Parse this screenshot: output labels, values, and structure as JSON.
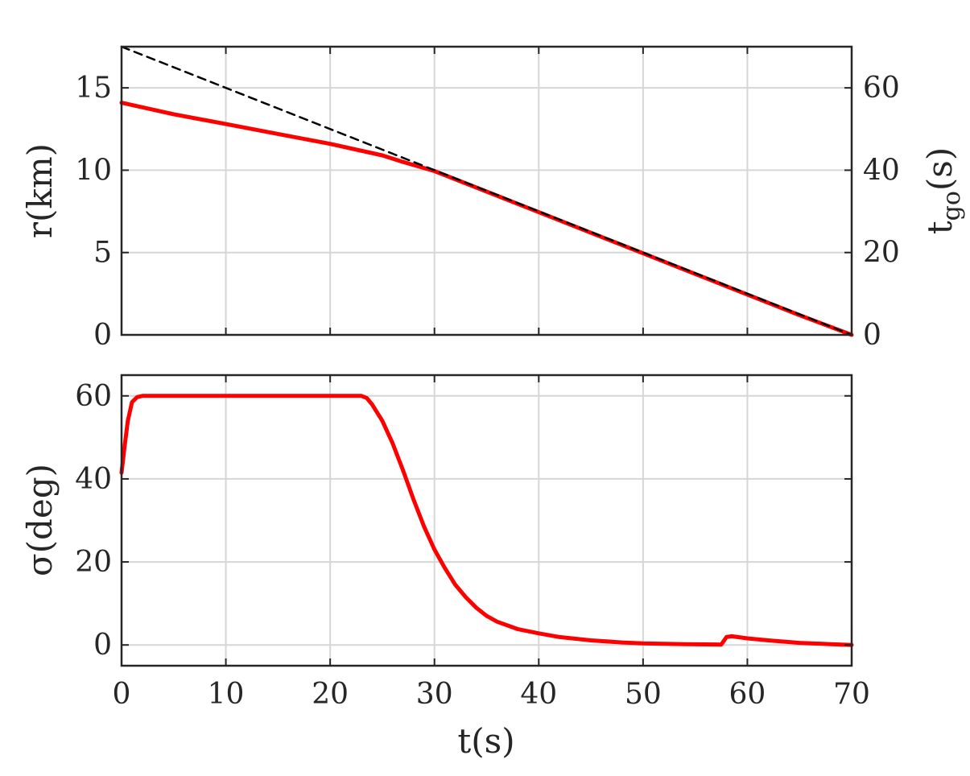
{
  "chart_data": [
    {
      "type": "line",
      "panel": "top",
      "xlim": [
        0,
        70
      ],
      "ylim": [
        0,
        17.5
      ],
      "ylim_right": [
        0,
        70
      ],
      "grid": true,
      "xlabel": "",
      "ylabel": "r(km)",
      "ylabel_right": {
        "base": "t",
        "sub": "go",
        "suffix": "(s)"
      },
      "x_ticks": [
        0,
        10,
        20,
        30,
        40,
        50,
        60,
        70
      ],
      "y_ticks": [
        0,
        5,
        10,
        15
      ],
      "y_ticks_right": [
        0,
        20,
        40,
        60
      ],
      "colors": {
        "r": "#ff0000",
        "tgo": "#000000"
      },
      "series": [
        {
          "axis": "left",
          "style": "solid",
          "color": "#ff0000",
          "x": [
            0,
            5,
            10,
            15,
            20,
            25,
            27,
            30,
            35,
            40,
            45,
            50,
            55,
            60,
            65,
            70
          ],
          "y": [
            14.1,
            13.4,
            12.8,
            12.2,
            11.6,
            10.9,
            10.5,
            9.95,
            8.7,
            7.45,
            6.2,
            4.95,
            3.7,
            2.45,
            1.2,
            0
          ]
        },
        {
          "axis": "right",
          "style": "dashed",
          "color": "#000000",
          "x": [
            0,
            70
          ],
          "y": [
            70,
            0
          ]
        }
      ]
    },
    {
      "type": "line",
      "panel": "bottom",
      "xlim": [
        0,
        70
      ],
      "ylim": [
        -5,
        65
      ],
      "grid": true,
      "xlabel": "t(s)",
      "ylabel": "σ(deg)",
      "x_ticks": [
        0,
        10,
        20,
        30,
        40,
        50,
        60,
        70
      ],
      "y_ticks": [
        0,
        20,
        40,
        60
      ],
      "series": [
        {
          "style": "solid",
          "color": "#ff0000",
          "x": [
            0,
            0.3,
            0.6,
            1.0,
            1.5,
            2,
            6,
            10,
            15,
            20,
            23,
            23.5,
            24,
            25,
            26,
            27,
            28,
            29,
            30,
            31,
            32,
            33,
            34,
            35,
            36,
            38,
            40,
            42,
            45,
            48,
            50,
            54,
            57.5,
            58,
            58.5,
            60,
            62,
            65,
            68,
            70
          ],
          "y": [
            41.5,
            48,
            54,
            58.5,
            59.7,
            60,
            60,
            60,
            60,
            60,
            60,
            59.5,
            58,
            54,
            48.5,
            42,
            35,
            28.5,
            23,
            18.5,
            14.5,
            11.5,
            9,
            7,
            5.6,
            3.8,
            2.8,
            1.9,
            1.1,
            0.6,
            0.4,
            0.2,
            0.1,
            1.9,
            2.1,
            1.6,
            1.1,
            0.5,
            0.2,
            0
          ]
        }
      ]
    }
  ]
}
